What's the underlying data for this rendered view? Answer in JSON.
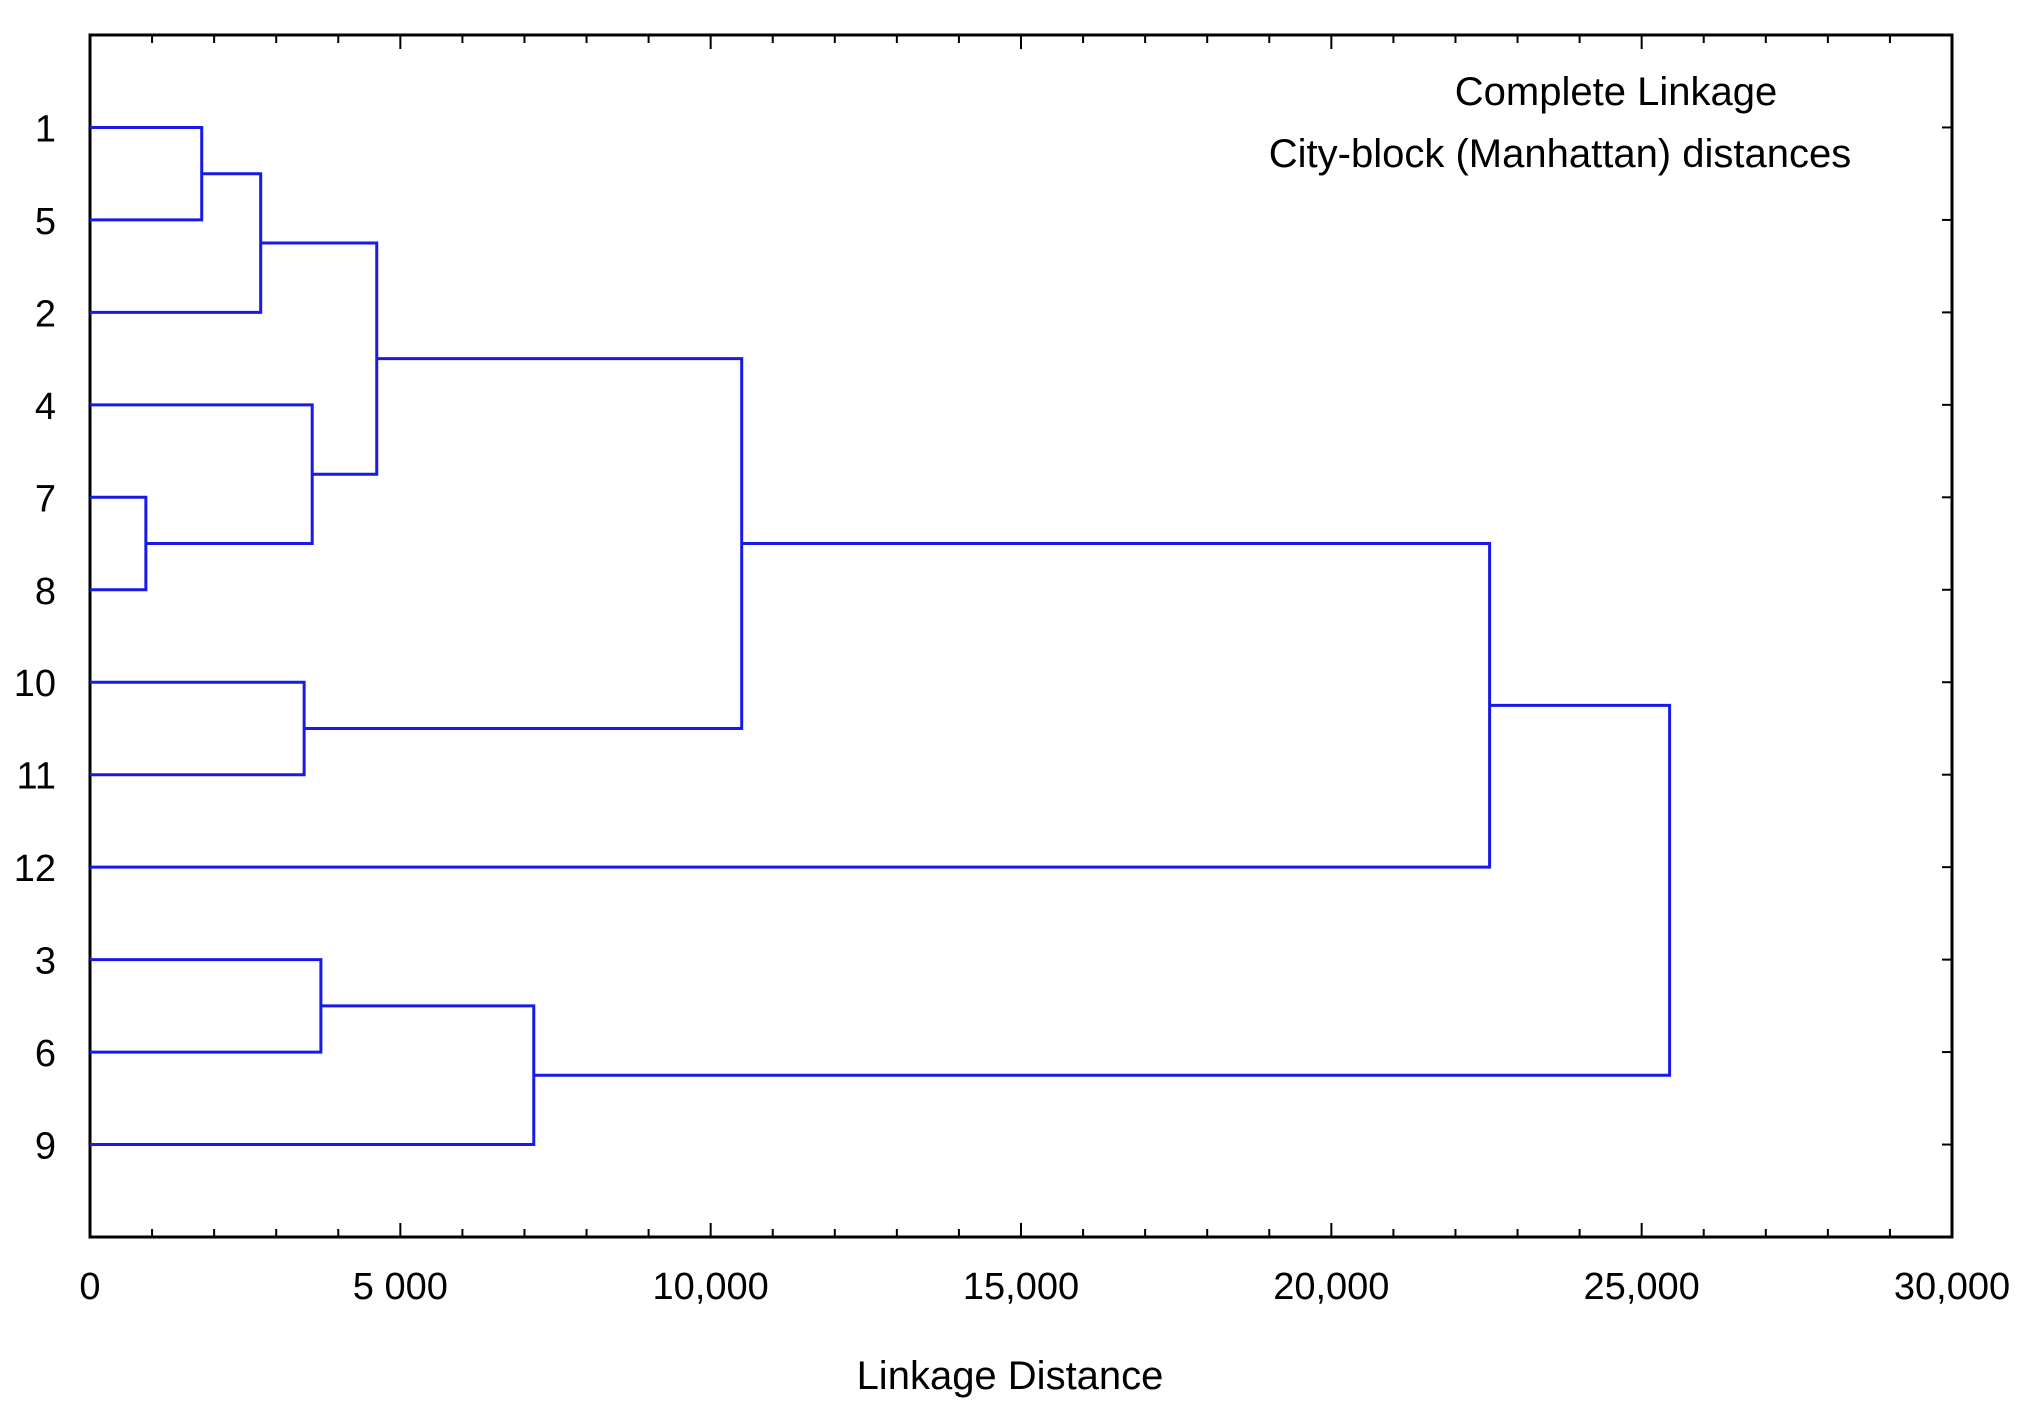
{
  "chart_data": {
    "type": "dendrogram",
    "orientation": "horizontal",
    "annotations": [
      "Complete Linkage",
      "City-block (Manhattan) distances"
    ],
    "xlabel": "Linkage Distance",
    "xlim": [
      0,
      30000
    ],
    "x_ticks": [
      0,
      5000,
      10000,
      15000,
      20000,
      25000,
      30000
    ],
    "x_tick_labels": [
      "0",
      "5 000",
      "10,000",
      "15,000",
      "20,000",
      "25,000",
      "30,000"
    ],
    "x_minor_step": 1000,
    "leaf_order": [
      "1",
      "5",
      "2",
      "4",
      "7",
      "8",
      "10",
      "11",
      "12",
      "3",
      "6",
      "9"
    ],
    "merges": [
      {
        "id": "A",
        "children": [
          "7",
          "8"
        ],
        "distance": 900
      },
      {
        "id": "B",
        "children": [
          "1",
          "5"
        ],
        "distance": 1800
      },
      {
        "id": "C",
        "children": [
          "B",
          "2"
        ],
        "distance": 2750
      },
      {
        "id": "D",
        "children": [
          "10",
          "11"
        ],
        "distance": 3450
      },
      {
        "id": "E",
        "children": [
          "4",
          "A"
        ],
        "distance": 3580
      },
      {
        "id": "F",
        "children": [
          "3",
          "6"
        ],
        "distance": 3720
      },
      {
        "id": "G",
        "children": [
          "C",
          "E"
        ],
        "distance": 4620
      },
      {
        "id": "H",
        "children": [
          "F",
          "9"
        ],
        "distance": 7150
      },
      {
        "id": "I",
        "children": [
          "G",
          "D"
        ],
        "distance": 10500
      },
      {
        "id": "J",
        "children": [
          "I",
          "12"
        ],
        "distance": 22550
      },
      {
        "id": "K",
        "children": [
          "J",
          "H"
        ],
        "distance": 25450
      }
    ],
    "line_color": "#1a1ae6",
    "frame_color": "#000000",
    "grid": false
  }
}
